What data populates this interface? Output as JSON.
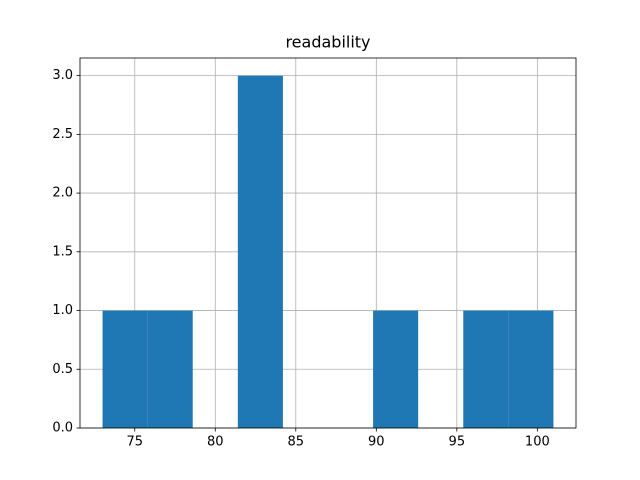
{
  "chart_data": {
    "type": "histogram",
    "title": "readability",
    "bins": [
      73,
      75.8,
      78.6,
      81.4,
      84.2,
      87,
      89.8,
      92.6,
      95.4,
      98.2,
      101
    ],
    "values": [
      1,
      1,
      0,
      3,
      0,
      0,
      1,
      0,
      1,
      1
    ],
    "color": "#1f77b4",
    "xlim": [
      71.6,
      102.4
    ],
    "xticks": [
      75,
      80,
      85,
      90,
      95,
      100
    ],
    "ylim": [
      0,
      3.15
    ],
    "yticks": [
      {
        "value": 0,
        "label": "0.0"
      },
      {
        "value": 0.5,
        "label": "0.5"
      },
      {
        "value": 1,
        "label": "1.0"
      },
      {
        "value": 1.5,
        "label": "1.5"
      },
      {
        "value": 2,
        "label": "2.0"
      },
      {
        "value": 2.5,
        "label": "2.5"
      },
      {
        "value": 3,
        "label": "3.0"
      }
    ],
    "grid": true
  }
}
